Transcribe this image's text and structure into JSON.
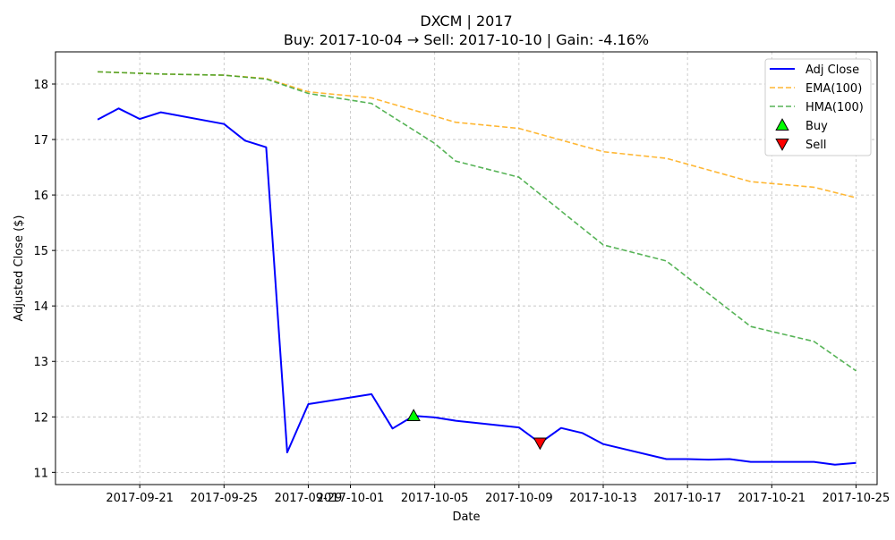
{
  "chart_data": {
    "type": "line",
    "title": "DXCM | 2017",
    "subtitle": "Buy: 2017-10-04  →  Sell: 2017-10-10  |  Gain: -4.16%",
    "xlabel": "Date",
    "ylabel": "Adjusted Close ($)",
    "x_range": [
      "2017-09-17",
      "2017-10-26"
    ],
    "ylim": [
      10.78,
      18.58
    ],
    "x_ticks": [
      "2017-09-21",
      "2017-09-25",
      "2017-09-29",
      "2017-10-01",
      "2017-10-05",
      "2017-10-09",
      "2017-10-13",
      "2017-10-17",
      "2017-10-21",
      "2017-10-25"
    ],
    "y_ticks": [
      11,
      12,
      13,
      14,
      15,
      16,
      17,
      18
    ],
    "grid": true,
    "legend_position": "upper right",
    "series": [
      {
        "name": "Adj Close",
        "color": "#0000ff",
        "style": "solid",
        "points": [
          [
            "2017-09-19",
            17.36
          ],
          [
            "2017-09-20",
            17.56
          ],
          [
            "2017-09-21",
            17.37
          ],
          [
            "2017-09-22",
            17.49
          ],
          [
            "2017-09-25",
            17.28
          ],
          [
            "2017-09-26",
            16.98
          ],
          [
            "2017-09-27",
            16.86
          ],
          [
            "2017-09-28",
            11.36
          ],
          [
            "2017-09-29",
            12.23
          ],
          [
            "2017-10-02",
            12.41
          ],
          [
            "2017-10-03",
            11.79
          ],
          [
            "2017-10-04",
            12.02
          ],
          [
            "2017-10-05",
            11.99
          ],
          [
            "2017-10-06",
            11.93
          ],
          [
            "2017-10-09",
            11.81
          ],
          [
            "2017-10-10",
            11.53
          ],
          [
            "2017-10-11",
            11.8
          ],
          [
            "2017-10-12",
            11.71
          ],
          [
            "2017-10-13",
            11.51
          ],
          [
            "2017-10-16",
            11.24
          ],
          [
            "2017-10-17",
            11.24
          ],
          [
            "2017-10-18",
            11.23
          ],
          [
            "2017-10-19",
            11.24
          ],
          [
            "2017-10-20",
            11.19
          ],
          [
            "2017-10-23",
            11.19
          ],
          [
            "2017-10-24",
            11.14
          ],
          [
            "2017-10-25",
            11.17
          ]
        ]
      },
      {
        "name": "EMA(100)",
        "color": "#ffa500",
        "style": "dashed",
        "points": [
          [
            "2017-09-19",
            18.22
          ],
          [
            "2017-09-22",
            18.18
          ],
          [
            "2017-09-25",
            18.16
          ],
          [
            "2017-09-27",
            18.1
          ],
          [
            "2017-09-29",
            17.86
          ],
          [
            "2017-10-02",
            17.75
          ],
          [
            "2017-10-05",
            17.42
          ],
          [
            "2017-10-06",
            17.31
          ],
          [
            "2017-10-09",
            17.2
          ],
          [
            "2017-10-13",
            16.78
          ],
          [
            "2017-10-16",
            16.66
          ],
          [
            "2017-10-20",
            16.24
          ],
          [
            "2017-10-23",
            16.14
          ],
          [
            "2017-10-25",
            15.95
          ]
        ]
      },
      {
        "name": "HMA(100)",
        "color": "#2ca02c",
        "style": "dashed",
        "points": [
          [
            "2017-09-19",
            18.22
          ],
          [
            "2017-09-22",
            18.18
          ],
          [
            "2017-09-25",
            18.16
          ],
          [
            "2017-09-27",
            18.09
          ],
          [
            "2017-09-29",
            17.83
          ],
          [
            "2017-10-02",
            17.65
          ],
          [
            "2017-10-05",
            16.93
          ],
          [
            "2017-10-06",
            16.61
          ],
          [
            "2017-10-09",
            16.32
          ],
          [
            "2017-10-13",
            15.1
          ],
          [
            "2017-10-16",
            14.81
          ],
          [
            "2017-10-20",
            13.63
          ],
          [
            "2017-10-23",
            13.36
          ],
          [
            "2017-10-25",
            12.83
          ]
        ]
      }
    ],
    "markers": [
      {
        "name": "Buy",
        "date": "2017-10-04",
        "value": 12.02,
        "color": "#00ff00",
        "shape": "triangle-up"
      },
      {
        "name": "Sell",
        "date": "2017-10-10",
        "value": 11.53,
        "color": "#ff0000",
        "shape": "triangle-down"
      }
    ]
  }
}
